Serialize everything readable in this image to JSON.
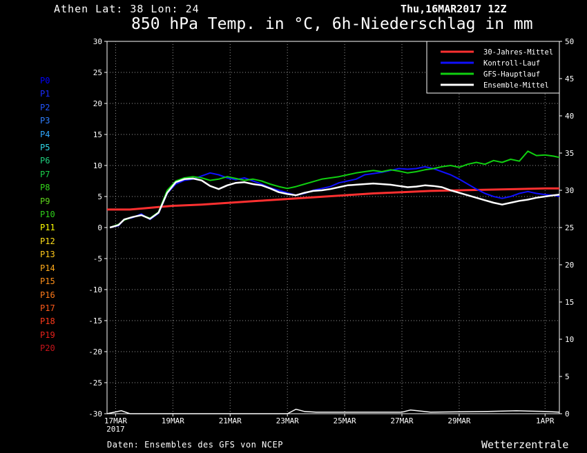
{
  "header": {
    "location": "Athen  Lat: 38 Lon: 24",
    "run_time": "Thu,16MAR2017 12Z",
    "title": "850 hPa Temp. in °C, 6h-Niederschlag in mm"
  },
  "footer": {
    "source": "Daten: Ensembles des GFS von NCEP",
    "brand": "Wetterzentrale"
  },
  "members": [
    {
      "label": "P0",
      "color": "#0000ff"
    },
    {
      "label": "P1",
      "color": "#1a2cff"
    },
    {
      "label": "P2",
      "color": "#2255ff"
    },
    {
      "label": "P3",
      "color": "#2f7fff"
    },
    {
      "label": "P4",
      "color": "#2fa8ff"
    },
    {
      "label": "P5",
      "color": "#2fd6e6"
    },
    {
      "label": "P6",
      "color": "#1fcf7f"
    },
    {
      "label": "P7",
      "color": "#1ad24a"
    },
    {
      "label": "P8",
      "color": "#33d91a"
    },
    {
      "label": "P9",
      "color": "#5ed61a"
    },
    {
      "label": "P10",
      "color": "#2ecf1a"
    },
    {
      "label": "P11",
      "color": "#ffff00"
    },
    {
      "label": "P12",
      "color": "#ffe01a"
    },
    {
      "label": "P13",
      "color": "#ffc81a"
    },
    {
      "label": "P14",
      "color": "#ffaa1a"
    },
    {
      "label": "P15",
      "color": "#ff901a"
    },
    {
      "label": "P16",
      "color": "#ff7a1a"
    },
    {
      "label": "P17",
      "color": "#ff5a1a"
    },
    {
      "label": "P18",
      "color": "#ff3a1a"
    },
    {
      "label": "P19",
      "color": "#e6201a"
    },
    {
      "label": "P20",
      "color": "#c8141a"
    }
  ],
  "chart_data": {
    "type": "line",
    "x_unit": "days since 17MAR2017 00Z",
    "xlim": [
      -0.3,
      15.5
    ],
    "x_ticks": [
      {
        "x": 0,
        "label": "17MAR",
        "sub": "2017"
      },
      {
        "x": 2,
        "label": "19MAR"
      },
      {
        "x": 4,
        "label": "21MAR"
      },
      {
        "x": 6,
        "label": "23MAR"
      },
      {
        "x": 8,
        "label": "25MAR"
      },
      {
        "x": 10,
        "label": "27MAR"
      },
      {
        "x": 12,
        "label": "29MAR"
      },
      {
        "x": 15,
        "label": "1APR"
      }
    ],
    "y_left": {
      "min": -30,
      "max": 30,
      "step": 5,
      "label": "°C"
    },
    "y_right": {
      "min": 0,
      "max": 50,
      "step": 5,
      "label": "mm"
    },
    "grid": true,
    "legend": {
      "position": "top-right",
      "entries": [
        {
          "name": "30-Jahres-Mittel",
          "color": "#ff3030"
        },
        {
          "name": "Kontroll-Lauf",
          "color": "#1010ff"
        },
        {
          "name": "GFS-Hauptlauf",
          "color": "#10d010"
        },
        {
          "name": "Ensemble-Mittel",
          "color": "#ffffff"
        }
      ]
    },
    "series": [
      {
        "name": "30-Jahres-Mittel",
        "color": "#ff3030",
        "width": 3,
        "points": [
          [
            -0.3,
            2.9
          ],
          [
            0.5,
            2.9
          ],
          [
            1,
            3.1
          ],
          [
            1.5,
            3.3
          ],
          [
            2,
            3.5
          ],
          [
            3,
            3.7
          ],
          [
            4,
            4.0
          ],
          [
            5,
            4.3
          ],
          [
            6,
            4.6
          ],
          [
            7,
            4.9
          ],
          [
            8,
            5.2
          ],
          [
            9,
            5.5
          ],
          [
            10,
            5.7
          ],
          [
            11,
            5.9
          ],
          [
            12,
            6.0
          ],
          [
            13,
            6.1
          ],
          [
            14,
            6.2
          ],
          [
            15,
            6.3
          ],
          [
            15.5,
            6.3
          ]
        ]
      },
      {
        "name": "Kontroll-Lauf",
        "color": "#1010ff",
        "width": 2,
        "points": [
          [
            -0.2,
            0.0
          ],
          [
            0.1,
            0.3
          ],
          [
            0.3,
            1.3
          ],
          [
            0.6,
            1.6
          ],
          [
            0.9,
            2.2
          ],
          [
            1.2,
            1.3
          ],
          [
            1.5,
            2.3
          ],
          [
            1.8,
            5.5
          ],
          [
            2.1,
            7.0
          ],
          [
            2.4,
            7.6
          ],
          [
            2.7,
            7.8
          ],
          [
            3.0,
            8.3
          ],
          [
            3.3,
            8.8
          ],
          [
            3.6,
            8.5
          ],
          [
            3.9,
            8.0
          ],
          [
            4.2,
            7.7
          ],
          [
            4.5,
            8.0
          ],
          [
            4.8,
            7.5
          ],
          [
            5.1,
            7.0
          ],
          [
            5.4,
            6.4
          ],
          [
            5.7,
            6.0
          ],
          [
            6.0,
            5.6
          ],
          [
            6.3,
            5.2
          ],
          [
            6.6,
            5.5
          ],
          [
            6.9,
            6.0
          ],
          [
            7.2,
            6.3
          ],
          [
            7.5,
            6.6
          ],
          [
            7.8,
            7.2
          ],
          [
            8.1,
            7.5
          ],
          [
            8.4,
            7.8
          ],
          [
            8.7,
            8.5
          ],
          [
            9.0,
            8.7
          ],
          [
            9.3,
            8.9
          ],
          [
            9.6,
            9.2
          ],
          [
            9.9,
            9.5
          ],
          [
            10.2,
            9.4
          ],
          [
            10.5,
            9.5
          ],
          [
            10.8,
            9.8
          ],
          [
            11.1,
            9.5
          ],
          [
            11.4,
            9.0
          ],
          [
            11.7,
            8.5
          ],
          [
            12.0,
            7.8
          ],
          [
            12.3,
            7.0
          ],
          [
            12.6,
            6.2
          ],
          [
            12.9,
            5.5
          ],
          [
            13.2,
            5.0
          ],
          [
            13.5,
            4.7
          ],
          [
            13.8,
            5.0
          ],
          [
            14.1,
            5.5
          ],
          [
            14.4,
            5.8
          ],
          [
            14.7,
            5.5
          ],
          [
            15.0,
            5.3
          ],
          [
            15.3,
            5.2
          ],
          [
            15.5,
            5.0
          ]
        ]
      },
      {
        "name": "GFS-Hauptlauf",
        "color": "#10d010",
        "width": 2,
        "points": [
          [
            -0.2,
            0.0
          ],
          [
            0.1,
            0.5
          ],
          [
            0.3,
            1.2
          ],
          [
            0.6,
            1.7
          ],
          [
            0.9,
            2.0
          ],
          [
            1.2,
            1.5
          ],
          [
            1.5,
            2.5
          ],
          [
            1.8,
            6.0
          ],
          [
            2.1,
            7.5
          ],
          [
            2.4,
            8.0
          ],
          [
            2.7,
            8.2
          ],
          [
            3.0,
            8.0
          ],
          [
            3.3,
            7.6
          ],
          [
            3.6,
            7.8
          ],
          [
            3.9,
            8.2
          ],
          [
            4.2,
            7.9
          ],
          [
            4.5,
            7.6
          ],
          [
            4.8,
            7.8
          ],
          [
            5.1,
            7.5
          ],
          [
            5.4,
            7.0
          ],
          [
            5.7,
            6.6
          ],
          [
            6.0,
            6.3
          ],
          [
            6.3,
            6.6
          ],
          [
            6.6,
            7.0
          ],
          [
            6.9,
            7.4
          ],
          [
            7.2,
            7.8
          ],
          [
            7.5,
            8.0
          ],
          [
            7.8,
            8.2
          ],
          [
            8.1,
            8.5
          ],
          [
            8.4,
            8.8
          ],
          [
            8.7,
            9.0
          ],
          [
            9.0,
            9.2
          ],
          [
            9.3,
            9.0
          ],
          [
            9.6,
            9.3
          ],
          [
            9.9,
            9.1
          ],
          [
            10.2,
            8.8
          ],
          [
            10.5,
            9.0
          ],
          [
            10.8,
            9.3
          ],
          [
            11.1,
            9.5
          ],
          [
            11.4,
            9.8
          ],
          [
            11.7,
            10.0
          ],
          [
            12.0,
            9.7
          ],
          [
            12.3,
            10.2
          ],
          [
            12.6,
            10.5
          ],
          [
            12.9,
            10.2
          ],
          [
            13.2,
            10.8
          ],
          [
            13.5,
            10.5
          ],
          [
            13.8,
            11.0
          ],
          [
            14.1,
            10.7
          ],
          [
            14.4,
            12.3
          ],
          [
            14.7,
            11.6
          ],
          [
            15.0,
            11.7
          ],
          [
            15.3,
            11.5
          ],
          [
            15.5,
            11.3
          ]
        ]
      },
      {
        "name": "Ensemble-Mittel",
        "color": "#ffffff",
        "width": 2.5,
        "points": [
          [
            -0.2,
            0.0
          ],
          [
            0.1,
            0.4
          ],
          [
            0.3,
            1.3
          ],
          [
            0.6,
            1.7
          ],
          [
            0.9,
            2.0
          ],
          [
            1.2,
            1.4
          ],
          [
            1.5,
            2.4
          ],
          [
            1.8,
            5.6
          ],
          [
            2.1,
            7.3
          ],
          [
            2.4,
            7.8
          ],
          [
            2.7,
            7.9
          ],
          [
            3.0,
            7.6
          ],
          [
            3.3,
            6.7
          ],
          [
            3.6,
            6.2
          ],
          [
            3.9,
            6.8
          ],
          [
            4.2,
            7.2
          ],
          [
            4.5,
            7.3
          ],
          [
            4.8,
            7.0
          ],
          [
            5.1,
            6.8
          ],
          [
            5.4,
            6.3
          ],
          [
            5.7,
            5.7
          ],
          [
            6.0,
            5.4
          ],
          [
            6.3,
            5.2
          ],
          [
            6.6,
            5.6
          ],
          [
            6.9,
            5.9
          ],
          [
            7.2,
            6.0
          ],
          [
            7.5,
            6.2
          ],
          [
            7.8,
            6.5
          ],
          [
            8.1,
            6.8
          ],
          [
            8.4,
            6.9
          ],
          [
            8.7,
            7.0
          ],
          [
            9.0,
            7.1
          ],
          [
            9.3,
            7.0
          ],
          [
            9.6,
            6.9
          ],
          [
            9.9,
            6.7
          ],
          [
            10.2,
            6.5
          ],
          [
            10.5,
            6.6
          ],
          [
            10.8,
            6.8
          ],
          [
            11.1,
            6.7
          ],
          [
            11.4,
            6.5
          ],
          [
            11.7,
            6.0
          ],
          [
            12.0,
            5.6
          ],
          [
            12.3,
            5.2
          ],
          [
            12.6,
            4.8
          ],
          [
            12.9,
            4.4
          ],
          [
            13.2,
            4.0
          ],
          [
            13.5,
            3.7
          ],
          [
            13.8,
            4.0
          ],
          [
            14.1,
            4.3
          ],
          [
            14.4,
            4.5
          ],
          [
            14.7,
            4.8
          ],
          [
            15.0,
            5.0
          ],
          [
            15.3,
            5.2
          ],
          [
            15.5,
            5.3
          ]
        ]
      }
    ],
    "precip_mean_mm": [
      [
        -0.3,
        0
      ],
      [
        0.2,
        0.4
      ],
      [
        0.5,
        0
      ],
      [
        6,
        0
      ],
      [
        6.3,
        0.6
      ],
      [
        6.6,
        0.3
      ],
      [
        7,
        0.2
      ],
      [
        10,
        0.2
      ],
      [
        10.3,
        0.5
      ],
      [
        11,
        0.2
      ],
      [
        13,
        0.3
      ],
      [
        14,
        0.4
      ],
      [
        15,
        0.3
      ],
      [
        15.5,
        0.2
      ]
    ]
  }
}
